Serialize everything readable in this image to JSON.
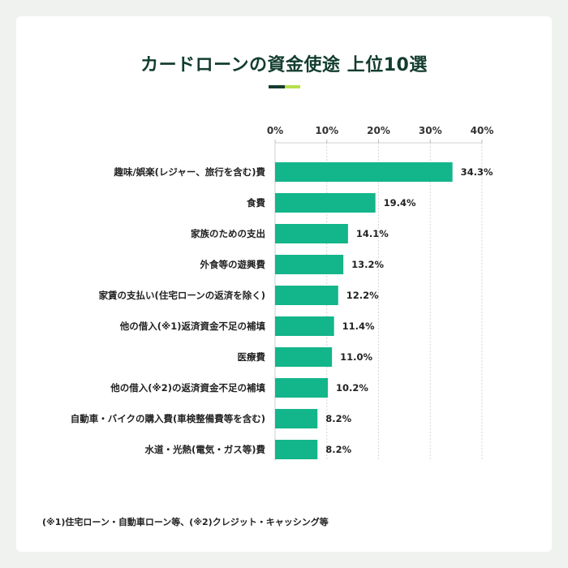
{
  "title": "カードローンの資金使途 上位10選",
  "footnote": "(※1)住宅ローン・自動車ローン等、(※2)クレジット・キャッシング等",
  "colors": {
    "bar": "#13b58a",
    "title": "#123d2e",
    "accent_dark": "#173b2f",
    "accent_light": "#b7e04a",
    "grid": "#d6d6d6"
  },
  "chart_data": {
    "type": "bar",
    "orientation": "horizontal",
    "title": "カードローンの資金使途 上位10選",
    "categories": [
      "趣味/娯楽(レジャー、旅行を含む)費",
      "食費",
      "家族のための支出",
      "外食等の遊興費",
      "家賃の支払い(住宅ローンの返済を除く)",
      "他の借入(※1)返済資金不足の補填",
      "医療費",
      "他の借入(※2)の返済資金不足の補填",
      "自動車・バイクの購入費(車検整備費等を含む)",
      "水道・光熱(電気・ガス等)費"
    ],
    "values": [
      34.3,
      19.4,
      14.1,
      13.2,
      12.2,
      11.4,
      11.0,
      10.2,
      8.2,
      8.2
    ],
    "value_labels": [
      "34.3%",
      "19.4%",
      "14.1%",
      "13.2%",
      "12.2%",
      "11.4%",
      "11.0%",
      "10.2%",
      "8.2%",
      "8.2%"
    ],
    "xlim": [
      0,
      40
    ],
    "xticks": [
      0,
      10,
      20,
      30,
      40
    ],
    "xtick_labels": [
      "0%",
      "10%",
      "20%",
      "30%",
      "40%"
    ],
    "axis_position": "top",
    "grid": true,
    "xlabel": "",
    "ylabel": ""
  }
}
